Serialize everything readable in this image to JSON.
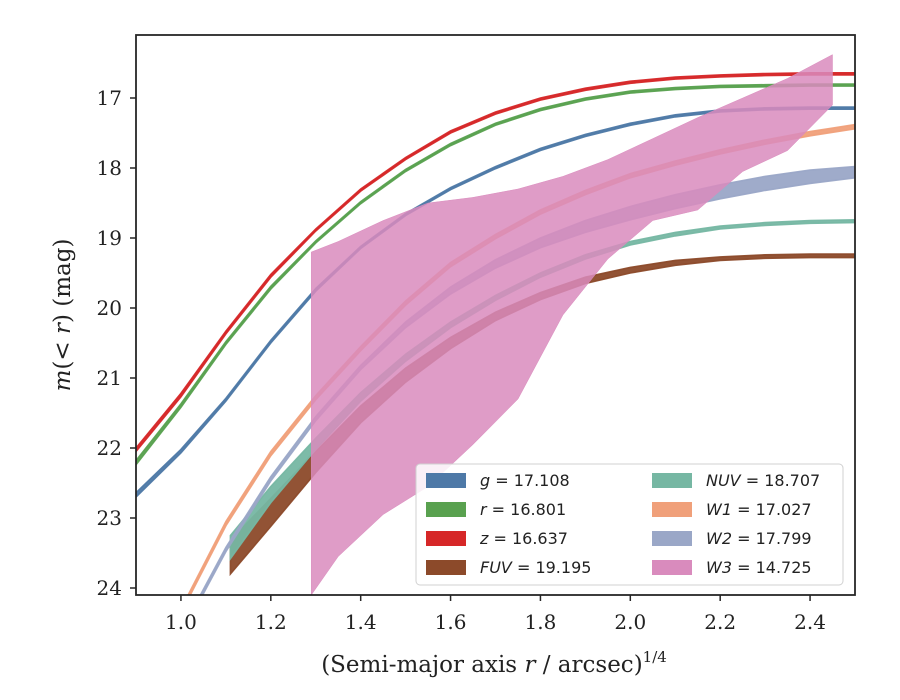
{
  "chart_data": {
    "type": "line",
    "xlabel_main": "(Semi-major axis ",
    "xlabel_var": "r",
    "xlabel_mid": " / arcsec)",
    "xlabel_sup": "1/4",
    "ylabel_pre": "m",
    "ylabel_mid": "(< ",
    "ylabel_var": "r",
    "ylabel_post": ") (mag)",
    "xlim": [
      0.9,
      2.5
    ],
    "ylim": [
      24.1,
      16.1
    ],
    "y_inverted": true,
    "xticks": [
      1.0,
      1.2,
      1.4,
      1.6,
      1.8,
      2.0,
      2.2,
      2.4
    ],
    "xtick_labels": [
      "1.0",
      "1.2",
      "1.4",
      "1.6",
      "1.8",
      "2.0",
      "2.2",
      "2.4"
    ],
    "yticks": [
      17,
      18,
      19,
      20,
      21,
      22,
      23,
      24
    ],
    "ytick_labels": [
      "17",
      "18",
      "19",
      "20",
      "21",
      "22",
      "23",
      "24"
    ],
    "grid": false,
    "legend_position": "lower-right",
    "series": [
      {
        "name": "g",
        "value_label": "= 17.108",
        "italic_name": false,
        "color": "#4e79a7",
        "x": [
          0.9,
          1.0,
          1.1,
          1.2,
          1.3,
          1.4,
          1.5,
          1.6,
          1.7,
          1.8,
          1.9,
          2.0,
          2.1,
          2.2,
          2.3,
          2.4,
          2.5
        ],
        "y_low": [
          22.64,
          22.02,
          21.29,
          20.46,
          19.72,
          19.12,
          18.65,
          18.28,
          17.98,
          17.72,
          17.52,
          17.36,
          17.24,
          17.17,
          17.14,
          17.13,
          17.13
        ],
        "y_high": [
          22.7,
          22.07,
          21.33,
          20.5,
          19.76,
          19.15,
          18.68,
          18.31,
          18.01,
          17.75,
          17.55,
          17.39,
          17.27,
          17.2,
          17.17,
          17.16,
          17.16
        ]
      },
      {
        "name": "r",
        "value_label": "= 16.801",
        "italic_name": false,
        "color": "#59a14f",
        "x": [
          0.9,
          1.0,
          1.1,
          1.2,
          1.3,
          1.4,
          1.5,
          1.6,
          1.7,
          1.8,
          1.9,
          2.0,
          2.1,
          2.2,
          2.3,
          2.4,
          2.5
        ],
        "y_low": [
          22.18,
          21.37,
          20.48,
          19.69,
          19.04,
          18.48,
          18.02,
          17.65,
          17.36,
          17.15,
          17.0,
          16.9,
          16.85,
          16.82,
          16.81,
          16.8,
          16.8
        ],
        "y_high": [
          22.24,
          21.42,
          20.52,
          19.73,
          19.07,
          18.51,
          18.05,
          17.68,
          17.39,
          17.18,
          17.03,
          16.93,
          16.88,
          16.85,
          16.84,
          16.83,
          16.83
        ]
      },
      {
        "name": "z",
        "value_label": "= 16.637",
        "italic_name": false,
        "color": "#d62728",
        "x": [
          0.9,
          1.0,
          1.1,
          1.2,
          1.3,
          1.4,
          1.5,
          1.6,
          1.7,
          1.8,
          1.9,
          2.0,
          2.1,
          2.2,
          2.3,
          2.4,
          2.5
        ],
        "y_low": [
          22.0,
          21.22,
          20.33,
          19.52,
          18.87,
          18.3,
          17.85,
          17.47,
          17.2,
          17.0,
          16.86,
          16.76,
          16.7,
          16.67,
          16.65,
          16.64,
          16.64
        ],
        "y_high": [
          22.05,
          21.27,
          20.37,
          19.56,
          18.9,
          18.33,
          17.88,
          17.5,
          17.23,
          17.03,
          16.89,
          16.79,
          16.73,
          16.7,
          16.68,
          16.67,
          16.67
        ]
      },
      {
        "name": "FUV",
        "value_label": "= 19.195",
        "italic_name": true,
        "color": "#8c4a2a",
        "x": [
          1.11,
          1.2,
          1.3,
          1.4,
          1.5,
          1.6,
          1.7,
          1.8,
          1.9,
          2.0,
          2.1,
          2.2,
          2.3,
          2.4,
          2.5
        ],
        "y_low": [
          23.32,
          22.72,
          22.05,
          21.4,
          20.86,
          20.42,
          20.06,
          19.78,
          19.56,
          19.42,
          19.32,
          19.27,
          19.24,
          19.23,
          19.23
        ],
        "y_high": [
          23.8,
          23.12,
          22.35,
          21.64,
          21.06,
          20.58,
          20.18,
          19.88,
          19.65,
          19.5,
          19.39,
          19.32,
          19.29,
          19.28,
          19.28
        ]
      },
      {
        "name": "NUV",
        "value_label": "= 18.707",
        "italic_name": true,
        "color": "#76b7a3",
        "x": [
          1.11,
          1.2,
          1.3,
          1.4,
          1.5,
          1.6,
          1.7,
          1.8,
          1.9,
          2.0,
          2.1,
          2.2,
          2.3,
          2.4,
          2.5
        ],
        "y_low": [
          23.25,
          22.55,
          21.86,
          21.21,
          20.66,
          20.2,
          19.82,
          19.5,
          19.24,
          19.05,
          18.92,
          18.83,
          18.78,
          18.75,
          18.74
        ],
        "y_high": [
          23.58,
          22.78,
          22.02,
          21.33,
          20.76,
          20.28,
          19.89,
          19.56,
          19.3,
          19.1,
          18.97,
          18.87,
          18.82,
          18.79,
          18.78
        ]
      },
      {
        "name": "W1",
        "value_label": "= 17.027",
        "italic_name": true,
        "color": "#f0a07a",
        "x": [
          0.9,
          1.0,
          1.1,
          1.2,
          1.3,
          1.4,
          1.5,
          1.6,
          1.7,
          1.8,
          1.9,
          2.0,
          2.1,
          2.2,
          2.3,
          2.4,
          2.5
        ],
        "y_low": [
          25.5,
          24.3,
          23.05,
          22.05,
          21.25,
          20.55,
          19.9,
          19.35,
          18.95,
          18.6,
          18.32,
          18.08,
          17.9,
          17.74,
          17.6,
          17.48,
          17.38
        ],
        "y_high": [
          25.56,
          24.36,
          23.11,
          22.11,
          21.31,
          20.61,
          19.96,
          19.41,
          19.01,
          18.66,
          18.38,
          18.14,
          17.96,
          17.8,
          17.66,
          17.54,
          17.44
        ]
      },
      {
        "name": "W2",
        "value_label": "= 17.799",
        "italic_name": true,
        "color": "#9aa7c7",
        "x": [
          0.9,
          1.0,
          1.1,
          1.2,
          1.3,
          1.4,
          1.5,
          1.6,
          1.7,
          1.8,
          1.9,
          2.0,
          2.1,
          2.2,
          2.3,
          2.4,
          2.5
        ],
        "y_low": [
          25.8,
          24.62,
          23.42,
          22.41,
          21.55,
          20.82,
          20.2,
          19.7,
          19.31,
          19.0,
          18.75,
          18.55,
          18.38,
          18.24,
          18.12,
          18.03,
          17.98
        ],
        "y_high": [
          25.86,
          24.68,
          23.48,
          22.47,
          21.61,
          20.88,
          20.28,
          19.8,
          19.43,
          19.14,
          18.92,
          18.74,
          18.58,
          18.44,
          18.32,
          18.22,
          18.14
        ]
      },
      {
        "name": "W3",
        "value_label": "= 14.725",
        "italic_name": true,
        "color": "#d98bbd",
        "x": [
          1.29,
          1.35,
          1.45,
          1.55,
          1.65,
          1.75,
          1.85,
          1.95,
          2.05,
          2.15,
          2.25,
          2.35,
          2.45
        ],
        "y_low": [
          24.1,
          23.55,
          22.95,
          22.55,
          21.95,
          21.3,
          20.1,
          19.3,
          18.75,
          18.6,
          18.05,
          17.75,
          17.1
        ],
        "y_high": [
          19.2,
          19.05,
          18.75,
          18.5,
          18.42,
          18.3,
          18.12,
          17.88,
          17.58,
          17.28,
          17.0,
          16.72,
          16.38
        ]
      }
    ]
  }
}
